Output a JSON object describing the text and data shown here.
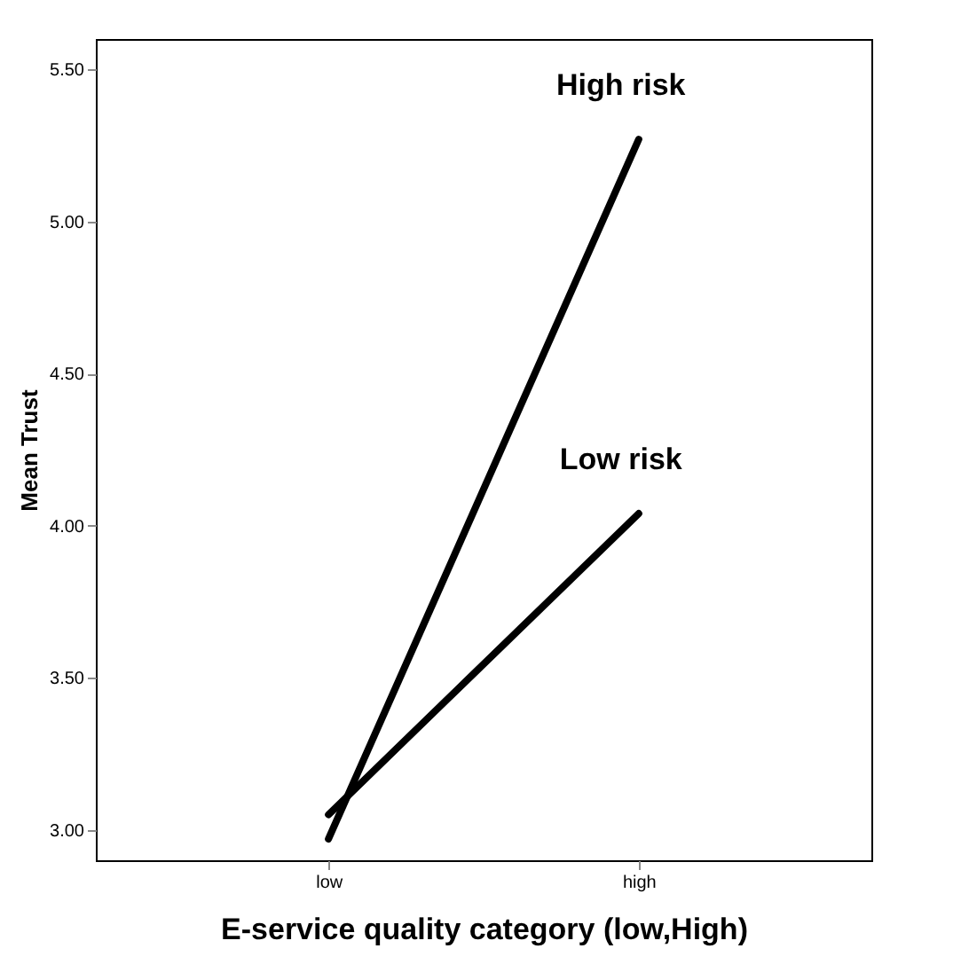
{
  "chart_data": {
    "type": "line",
    "xlabel": "E-service quality category (low,High)",
    "ylabel": "Mean Trust",
    "categories": [
      "low",
      "high"
    ],
    "series": [
      {
        "name": "High risk",
        "color": "#000000",
        "values": [
          2.97,
          5.27
        ]
      },
      {
        "name": "Low risk",
        "color": "#000000",
        "values": [
          3.05,
          4.04
        ]
      }
    ],
    "ylim": [
      2.9,
      5.6
    ],
    "yticks": [
      {
        "value": 3,
        "label": "3.00"
      },
      {
        "value": 3.5,
        "label": "3.50"
      },
      {
        "value": 4,
        "label": "4.00"
      },
      {
        "value": 4.5,
        "label": "4.50"
      },
      {
        "value": 5,
        "label": "5.00"
      },
      {
        "value": 5.5,
        "label": "5.50"
      }
    ],
    "grid": false,
    "legend": false,
    "marker": "none",
    "line_style": "solid"
  }
}
